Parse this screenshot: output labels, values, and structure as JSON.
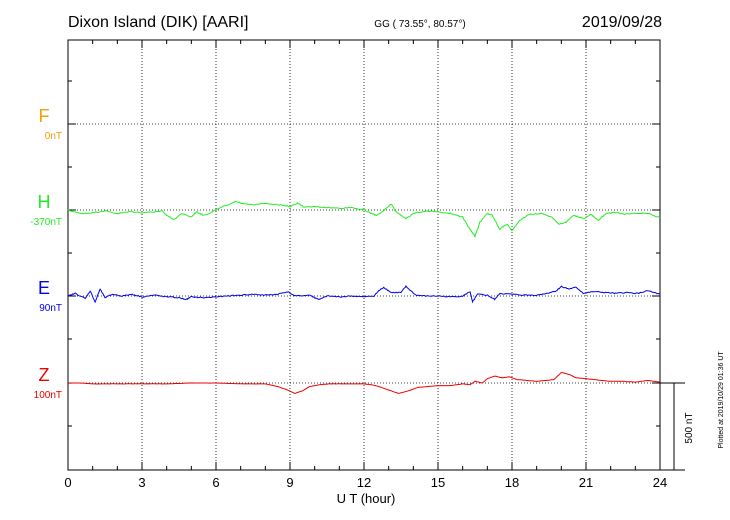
{
  "chart_data": {
    "type": "line",
    "title_left": "Dixon Island (DIK)  [AARI]",
    "title_center": "GG ( 73.55°,  80.57°)",
    "title_right": "2019/09/28",
    "xlabel": "U T (hour)",
    "xlim": [
      0,
      24
    ],
    "xticks": [
      0,
      3,
      6,
      9,
      12,
      15,
      18,
      21,
      24
    ],
    "scale_label": "500 nT",
    "side_note": "Plotted at 2019/10/29 01:36 UT",
    "series": [
      {
        "name": "F",
        "baseline_label": "0nT",
        "color": "#f0a000",
        "points": []
      },
      {
        "name": "H",
        "baseline_label": "-370nT",
        "color": "#22ee22",
        "points": [
          [
            0,
            0
          ],
          [
            0.5,
            -20
          ],
          [
            1,
            -15
          ],
          [
            1.5,
            -5
          ],
          [
            2,
            -20
          ],
          [
            2.5,
            -10
          ],
          [
            3,
            -15
          ],
          [
            3.5,
            -10
          ],
          [
            3.8,
            -5
          ],
          [
            4,
            -30
          ],
          [
            4.3,
            -55
          ],
          [
            4.6,
            -20
          ],
          [
            5,
            -40
          ],
          [
            5.2,
            -10
          ],
          [
            5.5,
            -30
          ],
          [
            5.8,
            -15
          ],
          [
            6,
            0
          ],
          [
            6.3,
            20
          ],
          [
            6.8,
            50
          ],
          [
            7.1,
            35
          ],
          [
            7.5,
            30
          ],
          [
            8,
            40
          ],
          [
            8.5,
            30
          ],
          [
            9,
            20
          ],
          [
            9.3,
            40
          ],
          [
            9.6,
            15
          ],
          [
            10,
            20
          ],
          [
            10.5,
            15
          ],
          [
            11,
            10
          ],
          [
            11.5,
            15
          ],
          [
            12,
            0
          ],
          [
            12.3,
            -20
          ],
          [
            12.5,
            -30
          ],
          [
            12.8,
            -5
          ],
          [
            13.1,
            35
          ],
          [
            13.3,
            -10
          ],
          [
            13.7,
            -50
          ],
          [
            14,
            -20
          ],
          [
            14.5,
            -5
          ],
          [
            15,
            -10
          ],
          [
            15.5,
            -20
          ],
          [
            16,
            -40
          ],
          [
            16.2,
            -90
          ],
          [
            16.5,
            -150
          ],
          [
            16.7,
            -70
          ],
          [
            17,
            -20
          ],
          [
            17.2,
            -30
          ],
          [
            17.5,
            -110
          ],
          [
            17.8,
            -80
          ],
          [
            18,
            -120
          ],
          [
            18.3,
            -60
          ],
          [
            18.7,
            -25
          ],
          [
            19.2,
            -20
          ],
          [
            19.6,
            -40
          ],
          [
            19.9,
            -80
          ],
          [
            20.2,
            -70
          ],
          [
            20.5,
            -30
          ],
          [
            20.9,
            -50
          ],
          [
            21.2,
            -25
          ],
          [
            21.5,
            -60
          ],
          [
            21.8,
            -20
          ],
          [
            22.2,
            -15
          ],
          [
            22.6,
            -25
          ],
          [
            23,
            -20
          ],
          [
            23.5,
            -20
          ],
          [
            24,
            -45
          ]
        ]
      },
      {
        "name": "E",
        "baseline_label": "90nT",
        "color": "#0000ee",
        "points": [
          [
            0,
            0
          ],
          [
            0.3,
            15
          ],
          [
            0.7,
            -15
          ],
          [
            0.9,
            30
          ],
          [
            1.1,
            -35
          ],
          [
            1.3,
            40
          ],
          [
            1.5,
            -10
          ],
          [
            1.8,
            10
          ],
          [
            2.2,
            0
          ],
          [
            2.6,
            10
          ],
          [
            3,
            -5
          ],
          [
            3.5,
            5
          ],
          [
            4,
            -5
          ],
          [
            4.5,
            -10
          ],
          [
            4.8,
            -20
          ],
          [
            5,
            -5
          ],
          [
            5.5,
            -10
          ],
          [
            6,
            -5
          ],
          [
            6.5,
            0
          ],
          [
            7,
            5
          ],
          [
            7.5,
            10
          ],
          [
            8,
            5
          ],
          [
            8.5,
            10
          ],
          [
            8.9,
            25
          ],
          [
            9.2,
            0
          ],
          [
            9.8,
            5
          ],
          [
            10,
            -10
          ],
          [
            10.2,
            -20
          ],
          [
            10.5,
            0
          ],
          [
            11,
            -5
          ],
          [
            11.5,
            0
          ],
          [
            12,
            -5
          ],
          [
            12.4,
            0
          ],
          [
            12.6,
            30
          ],
          [
            12.8,
            50
          ],
          [
            13.1,
            20
          ],
          [
            13.5,
            20
          ],
          [
            13.7,
            55
          ],
          [
            14.1,
            5
          ],
          [
            14.5,
            0
          ],
          [
            15,
            0
          ],
          [
            15.5,
            -5
          ],
          [
            16,
            0
          ],
          [
            16.3,
            25
          ],
          [
            16.4,
            -35
          ],
          [
            16.6,
            10
          ],
          [
            17,
            5
          ],
          [
            17.3,
            -20
          ],
          [
            17.5,
            15
          ],
          [
            18,
            10
          ],
          [
            18.5,
            5
          ],
          [
            19,
            5
          ],
          [
            19.4,
            15
          ],
          [
            19.8,
            30
          ],
          [
            20,
            55
          ],
          [
            20.3,
            40
          ],
          [
            20.6,
            50
          ],
          [
            20.9,
            15
          ],
          [
            21.3,
            25
          ],
          [
            21.8,
            20
          ],
          [
            22.2,
            15
          ],
          [
            22.6,
            20
          ],
          [
            23.1,
            15
          ],
          [
            23.5,
            30
          ],
          [
            24,
            10
          ]
        ]
      },
      {
        "name": "Z",
        "baseline_label": "100nT",
        "color": "#ee0000",
        "points": [
          [
            0,
            0
          ],
          [
            0.5,
            0
          ],
          [
            1,
            -5
          ],
          [
            1.5,
            -5
          ],
          [
            2,
            -5
          ],
          [
            2.5,
            -5
          ],
          [
            3,
            -5
          ],
          [
            3.5,
            -5
          ],
          [
            4,
            -5
          ],
          [
            5,
            0
          ],
          [
            6,
            0
          ],
          [
            7,
            -5
          ],
          [
            8,
            -5
          ],
          [
            8.5,
            -20
          ],
          [
            8.9,
            -40
          ],
          [
            9.2,
            -60
          ],
          [
            9.5,
            -45
          ],
          [
            9.8,
            -20
          ],
          [
            10.2,
            -10
          ],
          [
            10.6,
            -5
          ],
          [
            11,
            -5
          ],
          [
            11.5,
            -5
          ],
          [
            12,
            -5
          ],
          [
            12.3,
            -10
          ],
          [
            12.6,
            -20
          ],
          [
            13,
            -40
          ],
          [
            13.4,
            -60
          ],
          [
            13.8,
            -45
          ],
          [
            14.2,
            -25
          ],
          [
            14.6,
            -20
          ],
          [
            15,
            -15
          ],
          [
            15.5,
            -15
          ],
          [
            16,
            -5
          ],
          [
            16.3,
            -10
          ],
          [
            16.5,
            10
          ],
          [
            16.8,
            0
          ],
          [
            17,
            25
          ],
          [
            17.3,
            40
          ],
          [
            17.6,
            30
          ],
          [
            17.9,
            35
          ],
          [
            18.2,
            20
          ],
          [
            18.6,
            15
          ],
          [
            19,
            10
          ],
          [
            19.4,
            15
          ],
          [
            19.7,
            20
          ],
          [
            20,
            60
          ],
          [
            20.3,
            50
          ],
          [
            20.6,
            30
          ],
          [
            21,
            25
          ],
          [
            21.3,
            20
          ],
          [
            21.6,
            15
          ],
          [
            22,
            10
          ],
          [
            22.5,
            10
          ],
          [
            23,
            5
          ],
          [
            23.5,
            15
          ],
          [
            24,
            5
          ]
        ]
      }
    ]
  }
}
